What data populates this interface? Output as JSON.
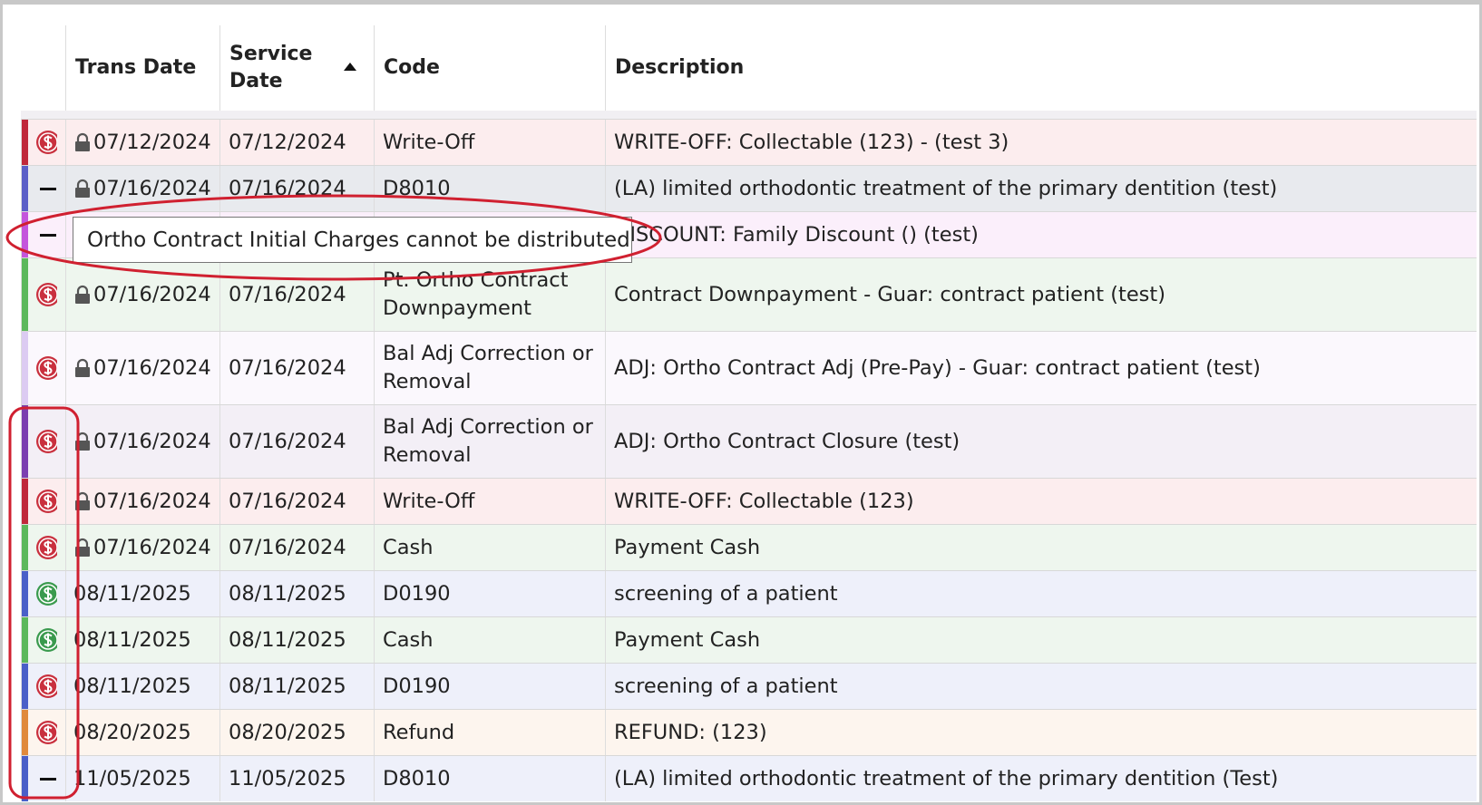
{
  "table": {
    "headers": [
      "Trans Date",
      "Service Date",
      "Code",
      "Description"
    ],
    "rows": [
      {
        "icon": "dollar",
        "icon_color": "#c9303e",
        "bar": "#c0283a",
        "bg": "#fcedee",
        "locked": true,
        "trans_date": "07/12/2024",
        "service_date": "07/12/2024",
        "code": "Write-Off",
        "description": "WRITE-OFF: Collectable (123) - (test 3)"
      },
      {
        "icon": "dash",
        "bar": "#5b5fc7",
        "bg": "#e8eaee",
        "locked": true,
        "trans_date": "07/16/2024",
        "service_date": "07/16/2024",
        "code": "D8010",
        "description": "(LA) limited orthodontic treatment of the primary dentition (test)"
      },
      {
        "icon": "dash",
        "bar": "#c455dc",
        "bg": "#fbeffb",
        "locked": false,
        "description": "DISCOUNT: Family Discount () (test)"
      },
      {
        "icon": "dollar",
        "icon_color": "#c9303e",
        "bar": "#5cb85c",
        "bg": "#eef6ee",
        "locked": true,
        "trans_date": "07/16/2024",
        "service_date": "07/16/2024",
        "code": "Pt. Ortho Contract Downpayment",
        "description": "Contract Downpayment - Guar: contract patient (test)"
      },
      {
        "icon": "dollar",
        "icon_color": "#c9303e",
        "bar": "#dccbf2",
        "bg": "#fbf8fd",
        "locked": true,
        "trans_date": "07/16/2024",
        "service_date": "07/16/2024",
        "code": "Bal Adj Correction or Removal",
        "description": "ADJ: Ortho Contract Adj (Pre-Pay) - Guar: contract patient (test)"
      },
      {
        "icon": "dollar",
        "icon_color": "#c9303e",
        "bar": "#7b3fb0",
        "bg": "#f3eff6",
        "locked": true,
        "trans_date": "07/16/2024",
        "service_date": "07/16/2024",
        "code": "Bal Adj Correction or Removal",
        "description": "ADJ: Ortho Contract Closure (test)"
      },
      {
        "icon": "dollar",
        "icon_color": "#c9303e",
        "bar": "#c0283a",
        "bg": "#fcedee",
        "locked": true,
        "trans_date": "07/16/2024",
        "service_date": "07/16/2024",
        "code": "Write-Off",
        "description": "WRITE-OFF: Collectable (123)"
      },
      {
        "icon": "dollar",
        "icon_color": "#c9303e",
        "bar": "#5cb85c",
        "bg": "#eef6ee",
        "locked": true,
        "trans_date": "07/16/2024",
        "service_date": "07/16/2024",
        "code": "Cash",
        "description": "Payment Cash"
      },
      {
        "icon": "dollar",
        "icon_color": "#3a9a4e",
        "bar": "#4a5fc8",
        "bg": "#eef0fa",
        "locked": false,
        "trans_date": "08/11/2025",
        "service_date": "08/11/2025",
        "code": "D0190",
        "description": "screening of a patient"
      },
      {
        "icon": "dollar",
        "icon_color": "#3a9a4e",
        "bar": "#5cb85c",
        "bg": "#eef6ee",
        "locked": false,
        "trans_date": "08/11/2025",
        "service_date": "08/11/2025",
        "code": "Cash",
        "description": "Payment Cash"
      },
      {
        "icon": "dollar",
        "icon_color": "#c9303e",
        "bar": "#4a5fc8",
        "bg": "#eef0fa",
        "locked": false,
        "trans_date": "08/11/2025",
        "service_date": "08/11/2025",
        "code": "D0190",
        "description": "screening of a patient"
      },
      {
        "icon": "dollar",
        "icon_color": "#c9303e",
        "bar": "#e08a3c",
        "bg": "#fdf5ee",
        "locked": false,
        "trans_date": "08/20/2025",
        "service_date": "08/20/2025",
        "code": "Refund",
        "description": "REFUND: (123)"
      },
      {
        "icon": "dash",
        "bar": "#4a5fc8",
        "bg": "#eef0fa",
        "locked": false,
        "trans_date": "11/05/2025",
        "service_date": "11/05/2025",
        "code": "D8010",
        "description": "(LA) limited orthodontic treatment of the primary dentition (Test)"
      }
    ]
  },
  "tooltip": "Ortho Contract Initial Charges cannot be distributed"
}
